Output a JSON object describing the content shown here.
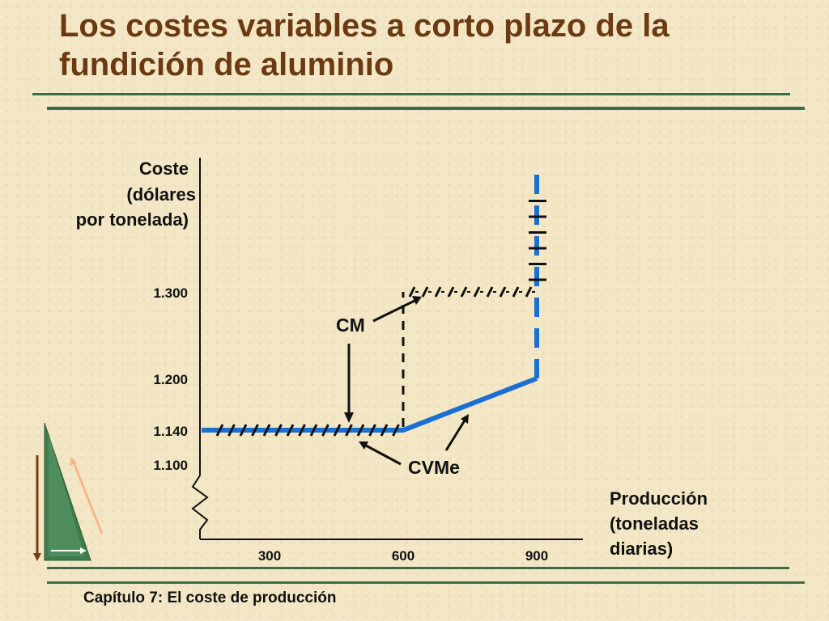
{
  "title": {
    "line1": "Los costes variables a corto plazo de la",
    "line2": "fundición de aluminio"
  },
  "footer": "Capítulo 7: El coste de producción",
  "chart_data": {
    "type": "line",
    "ylabel": [
      "Coste",
      "(dólares",
      "por tonelada)"
    ],
    "xlabel": [
      "Producción",
      "(toneladas",
      "diarias)"
    ],
    "y_ticks": [
      {
        "value": 1300,
        "label": "1.300"
      },
      {
        "value": 1200,
        "label": "1.200"
      },
      {
        "value": 1140,
        "label": "1.140"
      },
      {
        "value": 1100,
        "label": "1.100"
      }
    ],
    "x_ticks": [
      {
        "value": 300,
        "label": "300"
      },
      {
        "value": 600,
        "label": "600"
      },
      {
        "value": 900,
        "label": "900"
      }
    ],
    "axis_break": true,
    "series": [
      {
        "name": "CVMe",
        "color": "#1a6fd1",
        "points": [
          [
            0,
            1140
          ],
          [
            600,
            1140
          ],
          [
            900,
            1200
          ]
        ],
        "vertical_dashed_at_x": 900
      },
      {
        "name": "CM",
        "color": "#111111",
        "style": "hatched",
        "points": [
          [
            0,
            1140
          ],
          [
            600,
            1140
          ],
          [
            600,
            1300
          ],
          [
            900,
            1300
          ]
        ],
        "vertical_at_x": 900
      }
    ],
    "annotations": [
      {
        "text": "CM",
        "points_to": "CM"
      },
      {
        "text": "CVMe",
        "points_to": "CVMe"
      }
    ]
  },
  "colors": {
    "title": "#6b3a12",
    "rule": "#3d6b4a",
    "cvme": "#1a6fd1",
    "logo": "#3d7a4a"
  },
  "logo_icon": "triangle-arrows-logo"
}
